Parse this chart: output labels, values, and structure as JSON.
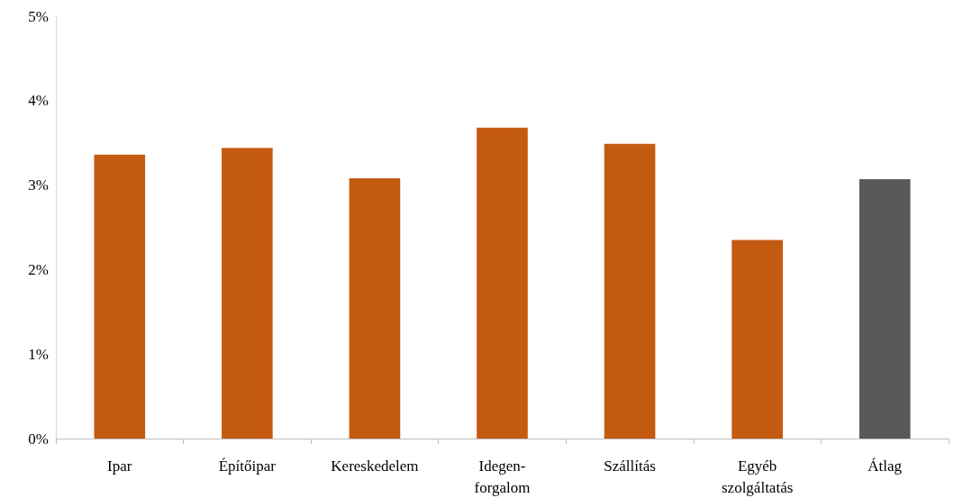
{
  "chart_data": {
    "type": "bar",
    "categories": [
      "Ipar",
      "Építőipar",
      "Kereskedelem",
      "Idegen-\nforgalom",
      "Szállítás",
      "Egyéb\nszolgáltatás",
      "Átlag"
    ],
    "values": [
      3.36,
      3.44,
      3.08,
      3.68,
      3.49,
      2.35,
      3.07
    ],
    "colors": [
      "#c55a11",
      "#c55a11",
      "#c55a11",
      "#c55a11",
      "#c55a11",
      "#c55a11",
      "#595959"
    ],
    "ylim": [
      0,
      5
    ],
    "yticks": [
      {
        "value": 0,
        "label": "0%"
      },
      {
        "value": 1,
        "label": "1%"
      },
      {
        "value": 2,
        "label": "2%"
      },
      {
        "value": 3,
        "label": "3%"
      },
      {
        "value": 4,
        "label": "4%"
      },
      {
        "value": 5,
        "label": "5%"
      }
    ],
    "grid": false
  }
}
